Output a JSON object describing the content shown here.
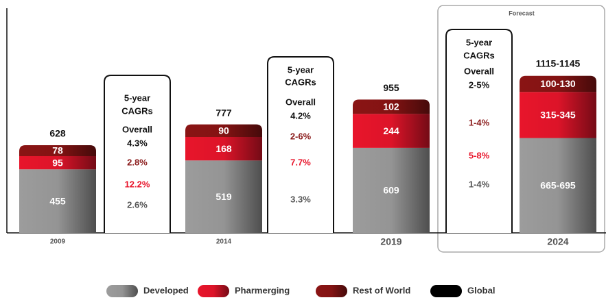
{
  "chart_data": {
    "type": "stacked_bar",
    "categories": [
      "2009",
      "2014",
      "2019",
      "2024"
    ],
    "ylim": [
      0,
      1600
    ],
    "series": [
      {
        "name": "Developed",
        "color": "#9c9c9c",
        "values": [
          455,
          519,
          609,
          680
        ],
        "value_labels": [
          "455",
          "519",
          "609",
          "665-695"
        ]
      },
      {
        "name": "Pharmerging",
        "color": "#e8152b",
        "values": [
          95,
          168,
          244,
          330
        ],
        "value_labels": [
          "95",
          "168",
          "244",
          "315-345"
        ]
      },
      {
        "name": "Rest of World",
        "color": "#8a1414",
        "values": [
          78,
          90,
          102,
          115
        ],
        "value_labels": [
          "78",
          "90",
          "102",
          "100-130"
        ]
      }
    ],
    "total": {
      "name": "Global",
      "color": "#000000",
      "values": [
        628,
        777,
        955,
        1130
      ],
      "value_labels": [
        "628",
        "777",
        "955",
        "1115-1145"
      ]
    },
    "forecast_label": "Forecast",
    "cagr_boxes": [
      {
        "heading": [
          "5-year",
          "CAGRs"
        ],
        "overall_label": "Overall",
        "overall": "4.3%",
        "rest_of_world": "2.8%",
        "pharmerging": "12.2%",
        "developed": "2.6%"
      },
      {
        "heading": [
          "5-year",
          "CAGRs"
        ],
        "overall_label": "Overall",
        "overall": "4.2%",
        "rest_of_world": "2-6%",
        "pharmerging": "7.7%",
        "developed": "3.3%"
      },
      {
        "heading": [
          "5-year",
          "CAGRs"
        ],
        "overall_label": "Overall",
        "overall": "2-5%",
        "rest_of_world": "1-4%",
        "pharmerging": "5-8%",
        "developed": "1-4%"
      }
    ]
  }
}
